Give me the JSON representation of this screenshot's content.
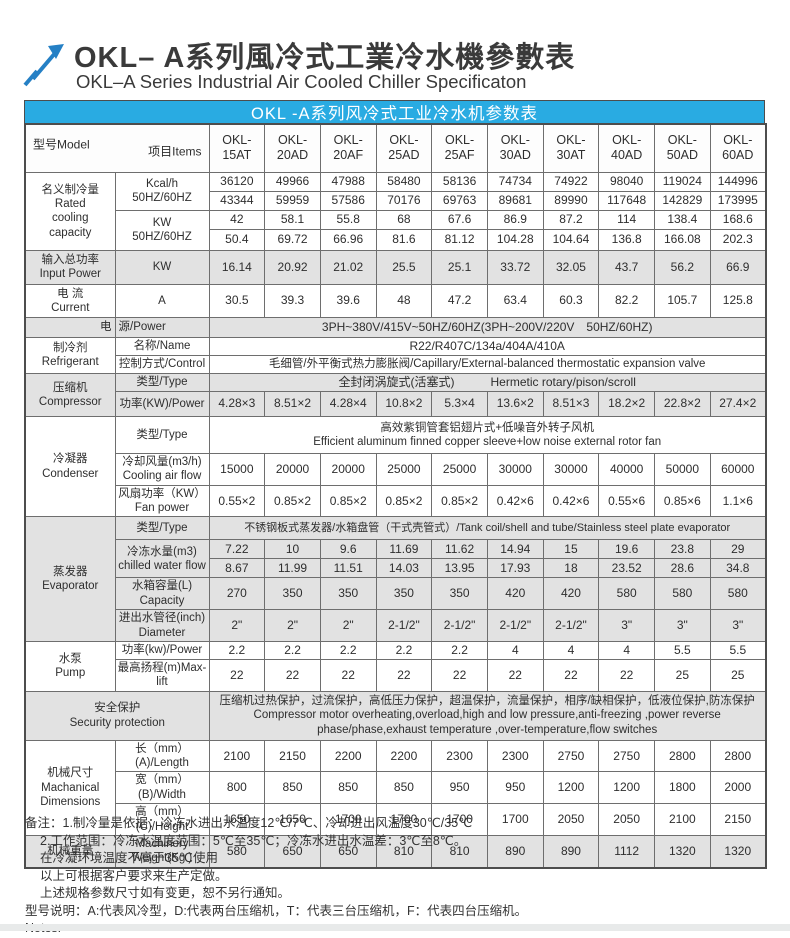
{
  "header": {
    "title_zh": "OKL– A系列風冷式工業冷水機參數表",
    "title_en": "OKL–A Series Industrial Air Cooled Chiller Specificaton"
  },
  "colors": {
    "accent_blue": "#29abe2",
    "logo_blue": "#2580c5",
    "row_shade": "#e2e2e2"
  },
  "table": {
    "title": "OKL -A系列风冷式工业冷水机参数表",
    "corner": {
      "model": "型号Model",
      "items": "项目Items"
    },
    "models": [
      "OKL-\n15AT",
      "OKL-\n20AD",
      "OKL-\n20AF",
      "OKL-\n25AD",
      "OKL-\n25AF",
      "OKL-\n30AD",
      "OKL-\n30AT",
      "OKL-\n40AD",
      "OKL-\n50AD",
      "OKL-\n60AD"
    ],
    "cooling": {
      "group_label": "名义制冷量\nRated\ncooling\ncapacity",
      "kcal_label": "Kcal/h\n50HZ/60HZ",
      "kw_label": "KW\n50HZ/60HZ",
      "kcal_50": [
        "36120",
        "49966",
        "47988",
        "58480",
        "58136",
        "74734",
        "74922",
        "98040",
        "119024",
        "144996"
      ],
      "kcal_60": [
        "43344",
        "59959",
        "57586",
        "70176",
        "69763",
        "89681",
        "89990",
        "117648",
        "142829",
        "173995"
      ],
      "kw_50": [
        "42",
        "58.1",
        "55.8",
        "68",
        "67.6",
        "86.9",
        "87.2",
        "114",
        "138.4",
        "168.6"
      ],
      "kw_60": [
        "50.4",
        "69.72",
        "66.96",
        "81.6",
        "81.12",
        "104.28",
        "104.64",
        "136.8",
        "166.08",
        "202.3"
      ]
    },
    "input_power": {
      "group_label": "输入总功率\nInput Power",
      "item_label": "KW",
      "values": [
        "16.14",
        "20.92",
        "21.02",
        "25.5",
        "25.1",
        "33.72",
        "32.05",
        "43.7",
        "56.2",
        "66.9"
      ]
    },
    "current": {
      "group_label": "电 流\nCurrent",
      "item_label": "A",
      "values": [
        "30.5",
        "39.3",
        "39.6",
        "48",
        "47.2",
        "63.4",
        "60.3",
        "82.2",
        "105.7",
        "125.8"
      ]
    },
    "power_supply": {
      "label_left": "电",
      "label_right": "源/Power",
      "value": "3PH~380V/415V~50HZ/60HZ(3PH~200V/220V　50HZ/60HZ)"
    },
    "refrigerant": {
      "group_label": "制冷剂\nRefrigerant",
      "name_label": "名称/Name",
      "name_value": "R22/R407C/134a/404A/410A",
      "control_label": "控制方式/Control",
      "control_value": "毛细管/外平衡式热力膨胀阀/Capillary/External-balanced thermostatic expansion valve"
    },
    "compressor": {
      "group_label": "压缩机\nCompressor",
      "type_label": "类型/Type",
      "type_value": "全封闭涡旋式(活塞式)　　　Hermetic rotary/pison/scroll",
      "power_label": "功率(KW)/Power",
      "power_values": [
        "4.28×3",
        "8.51×2",
        "4.28×4",
        "10.8×2",
        "5.3×4",
        "13.6×2",
        "8.51×3",
        "18.2×2",
        "22.8×2",
        "27.4×2"
      ]
    },
    "condenser": {
      "group_label": "冷凝器\nCondenser",
      "type_label": "类型/Type",
      "type_value": "高效紫铜管套铝翅片式+低噪音外转子风机\nEfficient aluminum finned copper sleeve+low noise external rotor fan",
      "airflow_label": "冷却风量(m3/h)\nCooling air flow",
      "airflow_values": [
        "15000",
        "20000",
        "20000",
        "25000",
        "25000",
        "30000",
        "30000",
        "40000",
        "50000",
        "60000"
      ],
      "fan_label": "风扇功率（KW）\nFan power",
      "fan_values": [
        "0.55×2",
        "0.85×2",
        "0.85×2",
        "0.85×2",
        "0.85×2",
        "0.42×6",
        "0.42×6",
        "0.55×6",
        "0.85×6",
        "1.1×6"
      ]
    },
    "evaporator": {
      "group_label": "蒸发器\nEvaporator",
      "type_label": "类型/Type",
      "type_value": "不锈钢板式蒸发器/水箱盘管（干式壳管式）/Tank coil/shell and tube/Stainless steel plate evaporator",
      "flow_label": "冷冻水量(m3)\nchilled water flow",
      "flow_values_50": [
        "7.22",
        "10",
        "9.6",
        "11.69",
        "11.62",
        "14.94",
        "15",
        "19.6",
        "23.8",
        "29"
      ],
      "flow_values_60": [
        "8.67",
        "11.99",
        "11.51",
        "14.03",
        "13.95",
        "17.93",
        "18",
        "23.52",
        "28.6",
        "34.8"
      ],
      "capacity_label": "水箱容量(L)\nCapacity",
      "capacity_values": [
        "270",
        "350",
        "350",
        "350",
        "350",
        "420",
        "420",
        "580",
        "580",
        "580"
      ],
      "diameter_label": "进出水管径(inch)\nDiameter",
      "diameter_values": [
        "2\"",
        "2\"",
        "2\"",
        "2-1/2\"",
        "2-1/2\"",
        "2-1/2\"",
        "2-1/2\"",
        "3\"",
        "3\"",
        "3\""
      ]
    },
    "pump": {
      "group_label": "水泵\nPump",
      "power_label": "功率(kw)/Power",
      "power_values": [
        "2.2",
        "2.2",
        "2.2",
        "2.2",
        "2.2",
        "4",
        "4",
        "4",
        "5.5",
        "5.5"
      ],
      "lift_label": "最高扬程(m)Max-lift",
      "lift_values": [
        "22",
        "22",
        "22",
        "22",
        "22",
        "22",
        "22",
        "22",
        "25",
        "25"
      ]
    },
    "security": {
      "label": "安全保护\nSecurity protection",
      "value": "压缩机过热保护，过流保护，高低压力保护，超温保护，流量保护，相序/缺相保护，低液位保护,防冻保护\nCompressor motor overheating,overload,high and low pressure,anti-freezing ,power reverse phase/phase,exhaust temperature ,over-temperature,flow switches"
    },
    "dimensions": {
      "group_label": "机械尺寸\nMachanical\nDimensions",
      "length_label": "长（mm）(A)/Length",
      "length_values": [
        "2100",
        "2150",
        "2200",
        "2200",
        "2300",
        "2300",
        "2750",
        "2750",
        "2800",
        "2800"
      ],
      "width_label": "宽（mm）(B)/Width",
      "width_values": [
        "800",
        "850",
        "850",
        "850",
        "950",
        "950",
        "1200",
        "1200",
        "1800",
        "2000"
      ],
      "height_label": "高（mm）(C)/Height",
      "height_values": [
        "1650",
        "1650",
        "1700",
        "1700",
        "1700",
        "1700",
        "2050",
        "2050",
        "2100",
        "2150"
      ]
    },
    "weight": {
      "group_label": "机械重量",
      "item_label": "Machinery\nWeight(Kg )",
      "values": [
        "580",
        "650",
        "650",
        "810",
        "810",
        "890",
        "890",
        "1112",
        "1320",
        "1320"
      ]
    }
  },
  "notes": {
    "line1": "备注：1.制冷量是依据：冷冻水进出水温度12℃/7℃、冷却进出风温度30℃/35℃",
    "line2": "2.工作范围：冷冻水温度范围：5℃至35℃；冷冻水进出水温差：3℃至8℃。",
    "line3": "在冷凝环境温度不高于35℃使用",
    "line4": "以上可根据客户要求来生产定做。",
    "line5": "上述规格参数尺寸如有变更，恕不另行通知。",
    "line6": "型号说明：A:代表风冷型，D:代表两台压缩机，T：代表三台压缩机，F：代表四台压缩机。",
    "line7": "Notes:"
  }
}
